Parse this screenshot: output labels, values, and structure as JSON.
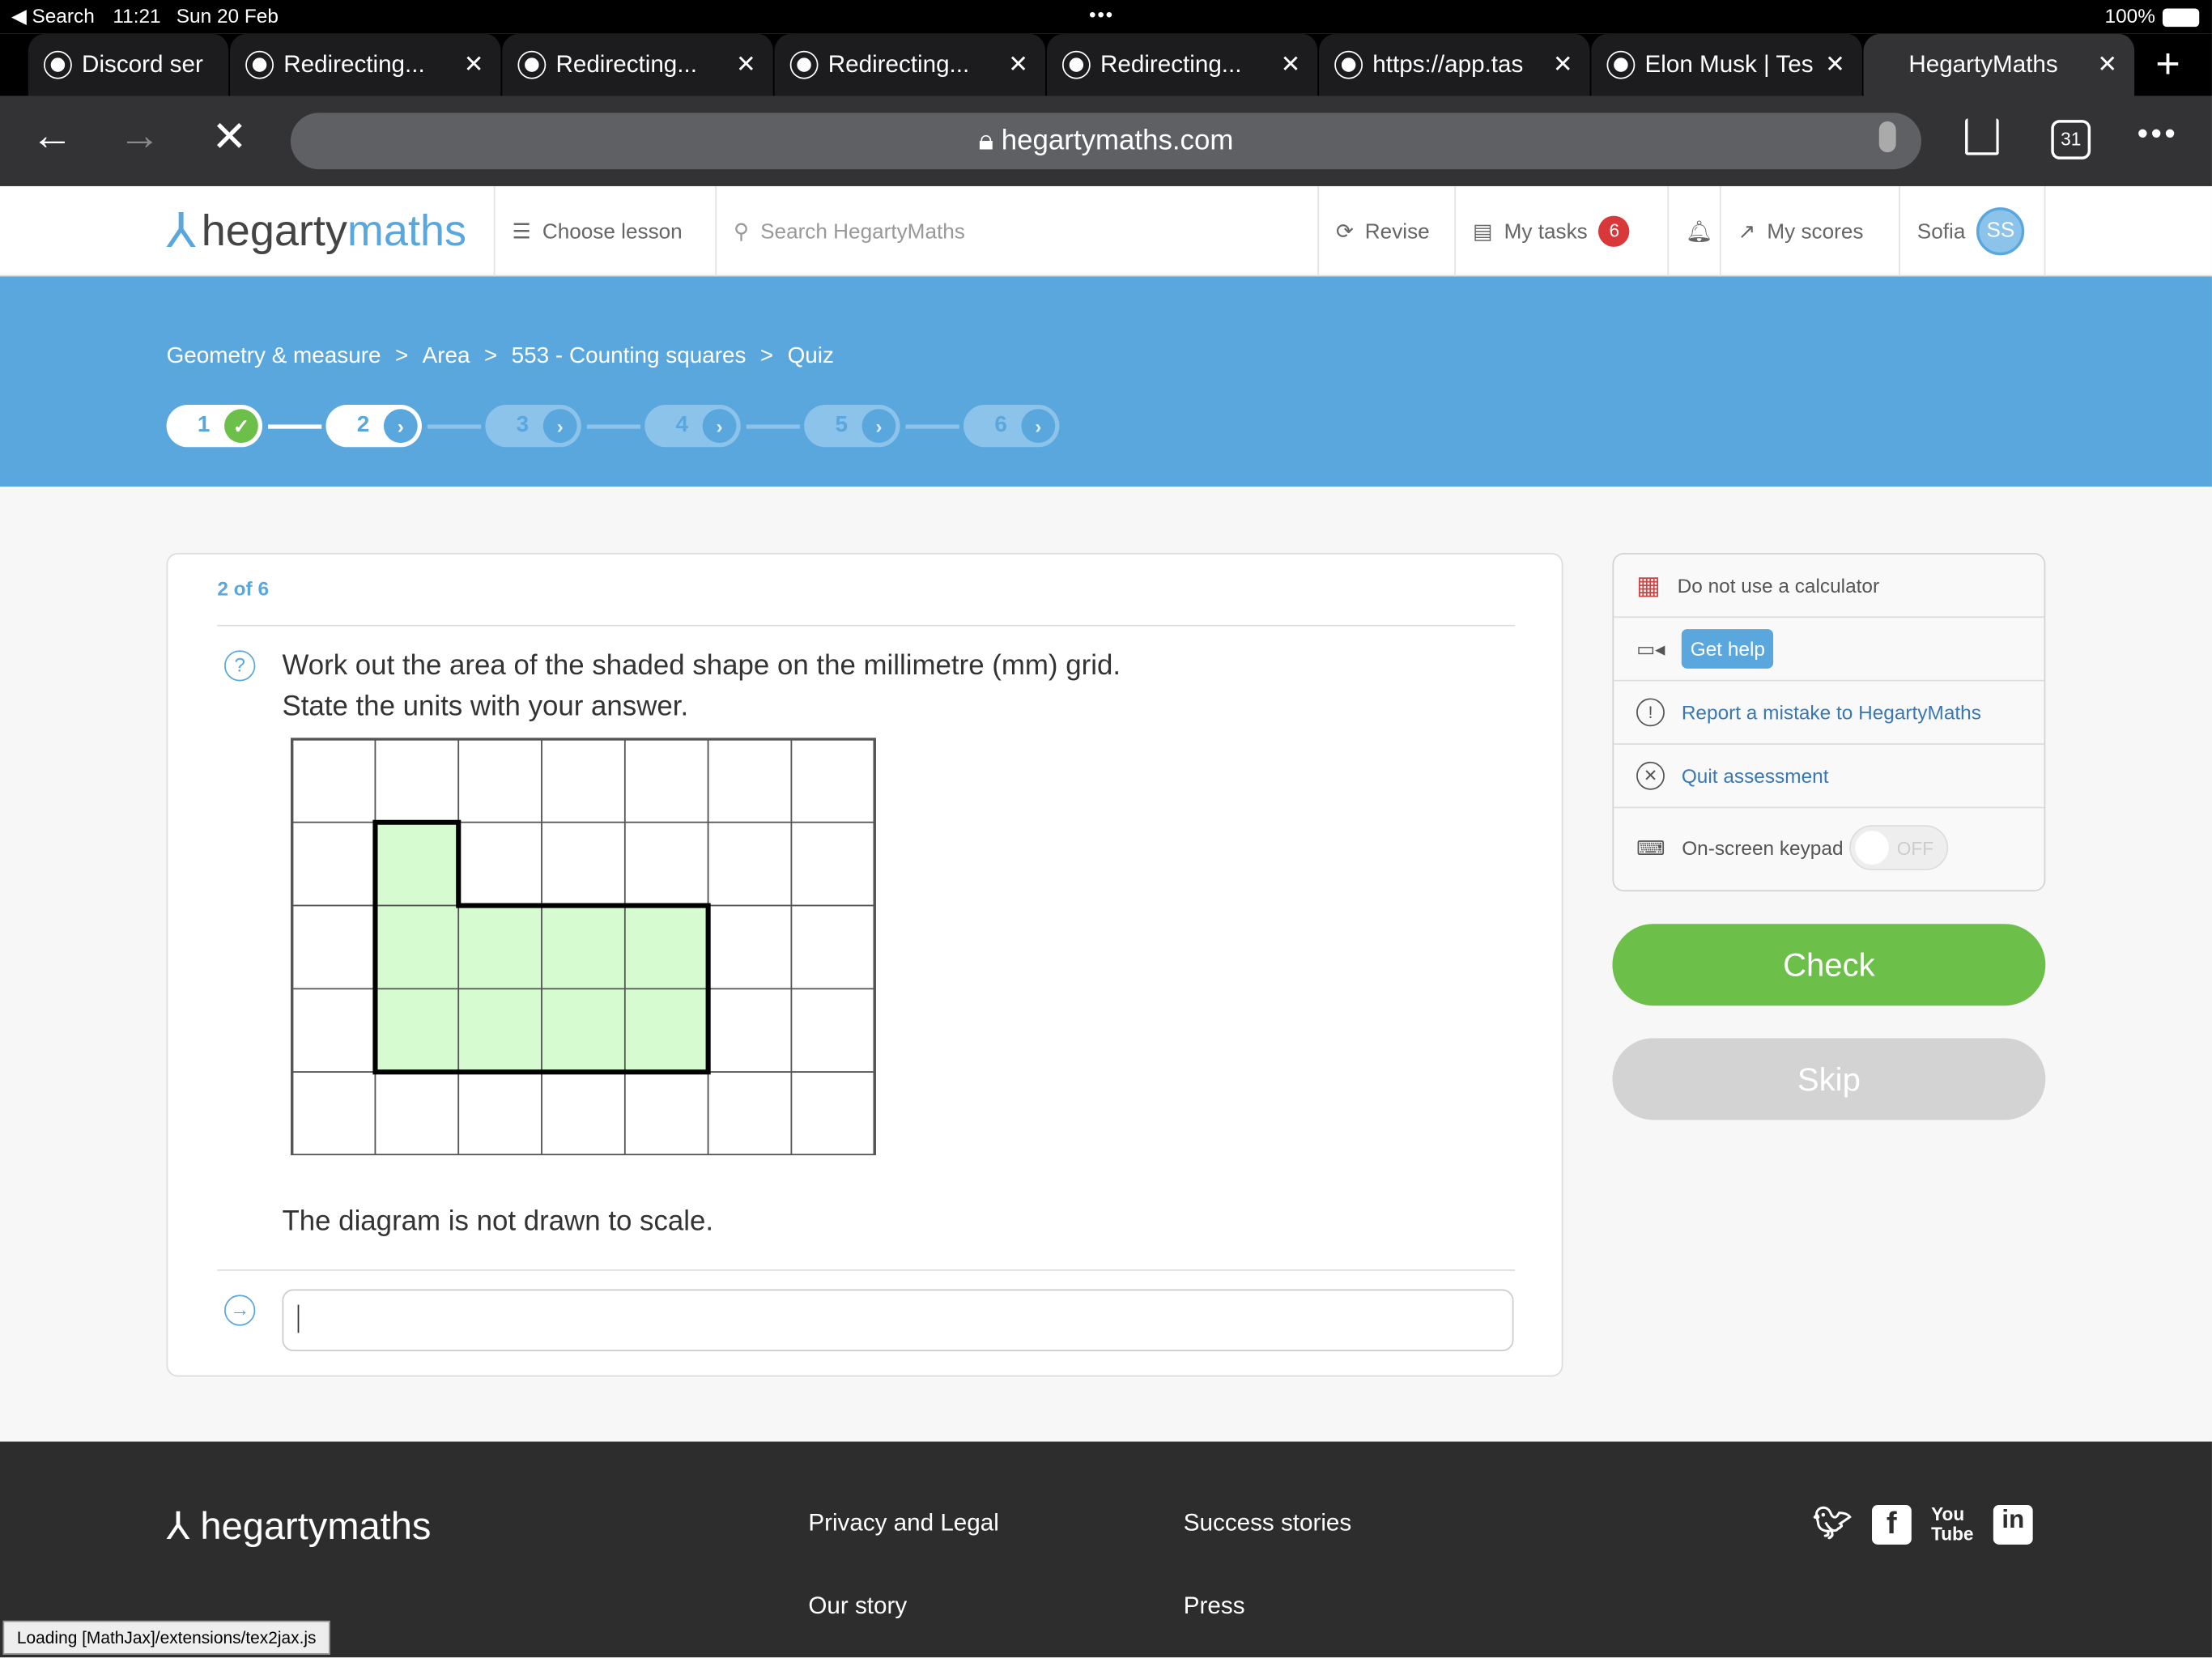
{
  "status_bar": {
    "back_app": "◀ Search",
    "time": "11:21",
    "date": "Sun 20 Feb",
    "battery": "100%"
  },
  "tabs": [
    {
      "title": "Discord ser"
    },
    {
      "title": "Redirecting..."
    },
    {
      "title": "Redirecting..."
    },
    {
      "title": "Redirecting..."
    },
    {
      "title": "Redirecting..."
    },
    {
      "title": "https://app.tas"
    },
    {
      "title": "Elon Musk | Tes"
    },
    {
      "title": "HegartyMaths",
      "active": true
    }
  ],
  "address_bar": {
    "url": "hegartymaths.com",
    "tab_count": "31"
  },
  "nav": {
    "logo_a": "hegarty",
    "logo_b": "maths",
    "choose_lesson": "Choose lesson",
    "search_placeholder": "Search HegartyMaths",
    "revise": "Revise",
    "my_tasks": "My tasks",
    "tasks_badge": "6",
    "my_scores": "My scores",
    "user": "Sofia",
    "avatar": "SS"
  },
  "breadcrumb": [
    "Geometry & measure",
    "Area",
    "553 - Counting squares",
    "Quiz"
  ],
  "breadcrumb_sep": ">",
  "steps": [
    {
      "n": "1",
      "state": "done"
    },
    {
      "n": "2",
      "state": "current"
    },
    {
      "n": "3",
      "state": "todo"
    },
    {
      "n": "4",
      "state": "todo"
    },
    {
      "n": "5",
      "state": "todo"
    },
    {
      "n": "6",
      "state": "todo"
    }
  ],
  "question": {
    "counter": "2 of 6",
    "line1": "Work out the area of the shaded shape on the millimetre (mm) grid.",
    "line2": "State the units with your answer.",
    "note": "The diagram is not drawn to scale.",
    "answer_value": "",
    "grid": {
      "cols": 7,
      "rows": 5,
      "shaded": [
        [
          1,
          1
        ],
        [
          1,
          2
        ],
        [
          2,
          2
        ],
        [
          3,
          2
        ],
        [
          4,
          2
        ],
        [
          1,
          3
        ],
        [
          2,
          3
        ],
        [
          3,
          3
        ],
        [
          4,
          3
        ]
      ],
      "shade_color": "#d6fbd0"
    }
  },
  "sidebar": {
    "calculator": "Do not use a calculator",
    "get_help": "Get help",
    "report": "Report a mistake to HegartyMaths",
    "quit": "Quit assessment",
    "keypad": "On-screen keypad",
    "keypad_state": "OFF"
  },
  "actions": {
    "check": "Check",
    "skip": "Skip"
  },
  "colors": {
    "brand_blue": "#5aa7de",
    "check_green": "#6cc04a",
    "skip_grey": "#d3d3d3"
  },
  "footer": {
    "logo": "hegartymaths",
    "links": [
      "Privacy and Legal",
      "Success stories",
      "Our story",
      "Press"
    ],
    "social": [
      "twitter-icon",
      "facebook-icon",
      "youtube-icon",
      "linkedin-icon"
    ],
    "loading": "Loading [MathJax]/extensions/tex2jax.js"
  }
}
